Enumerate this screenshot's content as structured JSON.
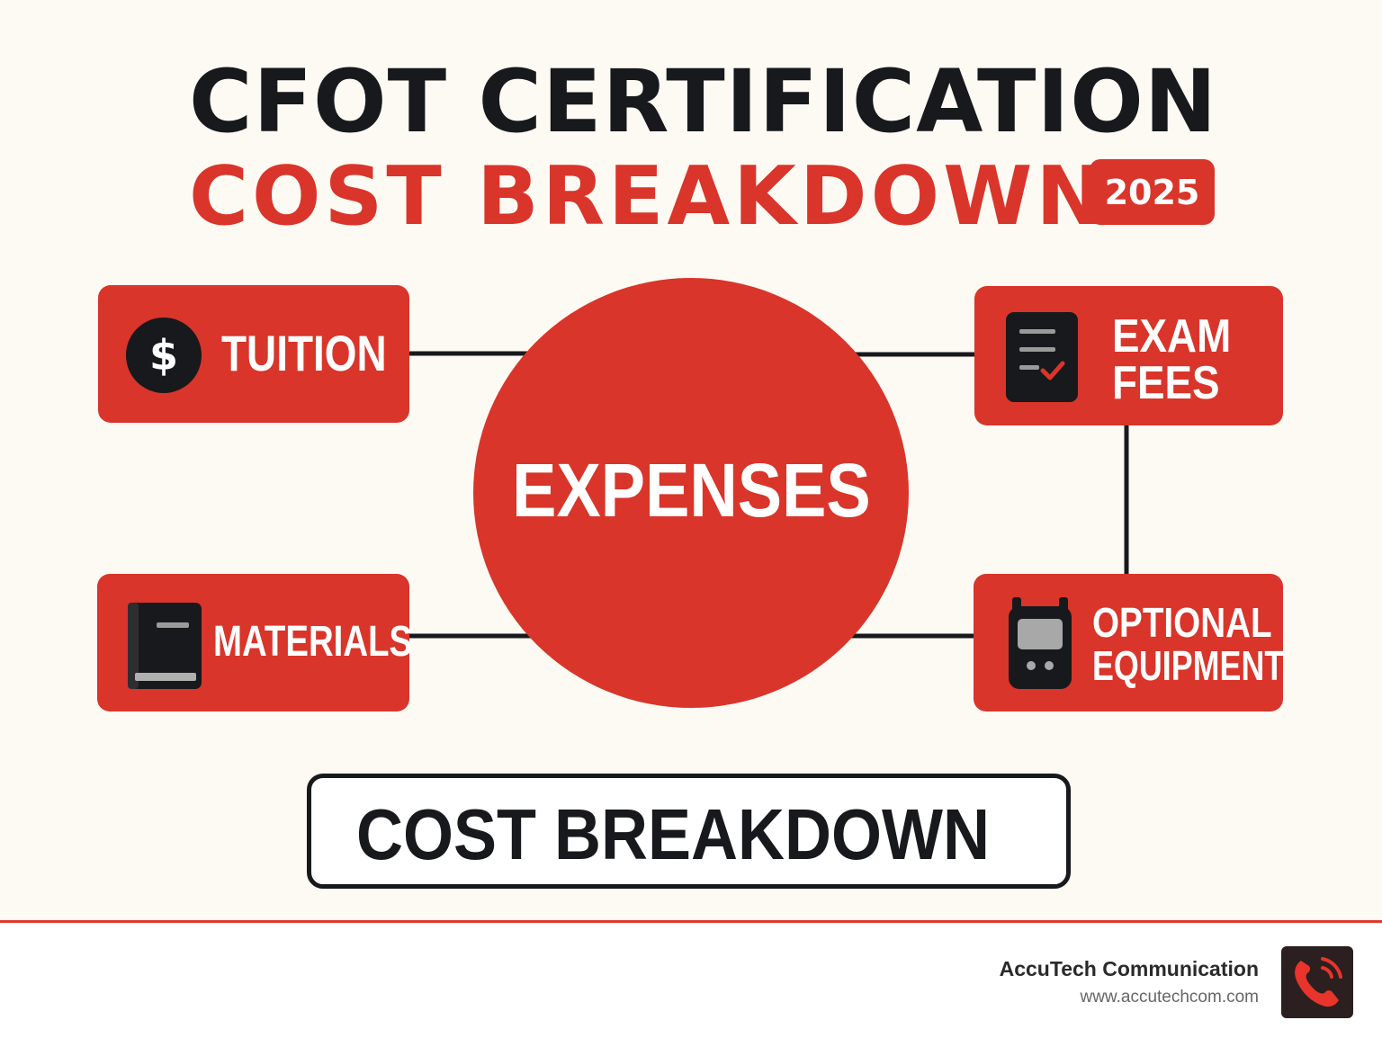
{
  "title": {
    "line1": "CFOT CERTIFICATION",
    "line2": "COST BREAKDOWN",
    "year_badge": "2025"
  },
  "center": {
    "label": "EXPENSES"
  },
  "nodes": {
    "tuition": {
      "label": "TUITION",
      "icon": "dollar-icon"
    },
    "exam_fees": {
      "line1": "EXAM",
      "line2": "FEES",
      "icon": "checklist-icon"
    },
    "materials": {
      "label": "MATERIALS",
      "icon": "book-icon"
    },
    "optional_equipment": {
      "line1": "OPTIONAL",
      "line2": "EQUIPMENT",
      "icon": "device-icon"
    }
  },
  "bottom_label": "COST BREAKDOWN",
  "footer": {
    "company": "AccuTech Communication",
    "website": "www.accutechcom.com",
    "logo_icon": "phone-icon"
  },
  "colors": {
    "accent": "#d9352a",
    "dark": "#17191c",
    "background": "#fdfaf4"
  }
}
